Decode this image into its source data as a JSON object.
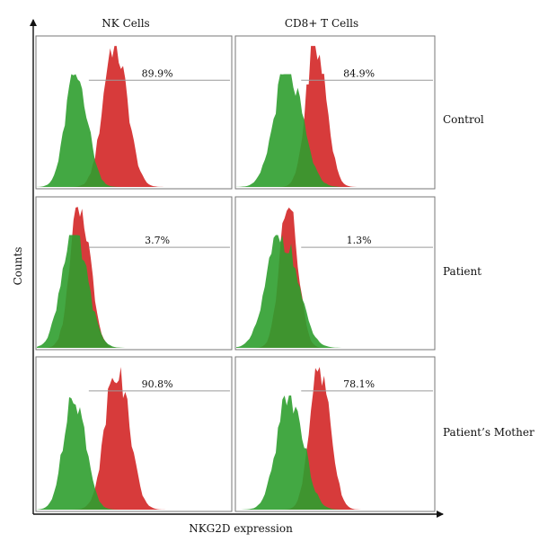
{
  "chart_data": {
    "type": "histogram",
    "xlabel": "NKG2D expression",
    "ylabel": "Counts",
    "columns": [
      "NK Cells",
      "CD8+ T Cells"
    ],
    "rows": [
      "Control",
      "Patient",
      "Patient’s Mother"
    ],
    "colors": {
      "unstained_control": "#2f9e2f",
      "nkg2d_stain": "#d42a2a",
      "gate_line": "#9a9a9a"
    },
    "panels": [
      {
        "row": "Control",
        "column": "NK Cells",
        "label": "89.9%",
        "green": {
          "mu": 0.21,
          "sigma": 0.055
        },
        "red": {
          "mu": 0.41,
          "sigma": 0.06
        }
      },
      {
        "row": "Control",
        "column": "CD8+ T Cells",
        "label": "84.9%",
        "green": {
          "mu": 0.27,
          "sigma": 0.07
        },
        "red": {
          "mu": 0.41,
          "sigma": 0.05
        }
      },
      {
        "row": "Patient",
        "column": "NK Cells",
        "label": "3.7%",
        "green": {
          "mu": 0.2,
          "sigma": 0.065
        },
        "red": {
          "mu": 0.23,
          "sigma": 0.05
        }
      },
      {
        "row": "Patient",
        "column": "CD8+ T Cells",
        "label": "1.3%",
        "green": {
          "mu": 0.24,
          "sigma": 0.075
        },
        "red": {
          "mu": 0.27,
          "sigma": 0.045
        }
      },
      {
        "row": "Patient’s Mother",
        "column": "NK Cells",
        "label": "90.8%",
        "green": {
          "mu": 0.2,
          "sigma": 0.055
        },
        "red": {
          "mu": 0.42,
          "sigma": 0.06
        }
      },
      {
        "row": "Patient’s Mother",
        "column": "CD8+ T Cells",
        "label": "78.1%",
        "green": {
          "mu": 0.28,
          "sigma": 0.065
        },
        "red": {
          "mu": 0.43,
          "sigma": 0.05
        }
      }
    ]
  }
}
